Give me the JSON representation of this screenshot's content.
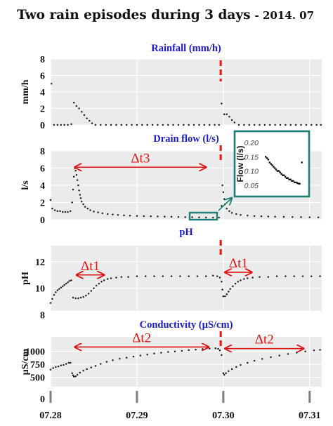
{
  "title": "Two rain episodes during 3 days",
  "title_suffix": "- 2014. 07",
  "colors": {
    "panel_bg": "#ebebeb",
    "grid": "#ffffff",
    "points": "#222222",
    "panel_title": "#1a1acc",
    "annotation": "#e01010",
    "event_line": "#ee1111",
    "inset": "#1a7f74",
    "x_ticks": "#808080"
  },
  "x_axis": {
    "range": [
      0.0,
      3.14
    ],
    "ticks": [
      {
        "label": "07.28",
        "value": 0.0
      },
      {
        "label": "07.29",
        "value": 1.0
      },
      {
        "label": "07.30",
        "value": 2.0
      },
      {
        "label": "07.31",
        "value": 3.0
      }
    ]
  },
  "event_x": 1.97,
  "chart_data": [
    {
      "type": "scatter",
      "title": "Rainfall (mm/h)",
      "ylabel": "mm/h",
      "ylim": [
        0,
        8
      ],
      "yticks": [
        0,
        2,
        4,
        6,
        8
      ],
      "grid": true,
      "points": [
        [
          0.01,
          5.0
        ],
        [
          0.04,
          0.0
        ],
        [
          0.08,
          0.0
        ],
        [
          0.12,
          0.0
        ],
        [
          0.16,
          0.0
        ],
        [
          0.2,
          0.0
        ],
        [
          0.24,
          0.1
        ],
        [
          0.27,
          2.7
        ],
        [
          0.3,
          2.3
        ],
        [
          0.33,
          2.0
        ],
        [
          0.36,
          1.6
        ],
        [
          0.39,
          1.2
        ],
        [
          0.42,
          0.8
        ],
        [
          0.45,
          0.5
        ],
        [
          0.48,
          0.2
        ],
        [
          0.52,
          0.0
        ],
        [
          0.58,
          0.0
        ],
        [
          0.64,
          0.0
        ],
        [
          0.7,
          0.0
        ],
        [
          0.76,
          0.0
        ],
        [
          0.82,
          0.0
        ],
        [
          0.88,
          0.0
        ],
        [
          0.94,
          0.0
        ],
        [
          1.0,
          0.0
        ],
        [
          1.06,
          0.0
        ],
        [
          1.12,
          0.0
        ],
        [
          1.18,
          0.0
        ],
        [
          1.24,
          0.0
        ],
        [
          1.3,
          0.0
        ],
        [
          1.36,
          0.0
        ],
        [
          1.42,
          0.0
        ],
        [
          1.48,
          0.0
        ],
        [
          1.54,
          0.0
        ],
        [
          1.6,
          0.0
        ],
        [
          1.66,
          0.0
        ],
        [
          1.72,
          0.0
        ],
        [
          1.78,
          0.0
        ],
        [
          1.84,
          0.0
        ],
        [
          1.9,
          0.0
        ],
        [
          1.95,
          0.0
        ],
        [
          1.98,
          2.6
        ],
        [
          2.01,
          1.3
        ],
        [
          2.04,
          1.3
        ],
        [
          2.07,
          1.0
        ],
        [
          2.1,
          0.6
        ],
        [
          2.13,
          0.3
        ],
        [
          2.18,
          0.0
        ],
        [
          2.24,
          0.0
        ],
        [
          2.3,
          0.0
        ],
        [
          2.36,
          0.0
        ],
        [
          2.42,
          0.0
        ],
        [
          2.48,
          0.0
        ],
        [
          2.54,
          0.0
        ],
        [
          2.6,
          0.0
        ],
        [
          2.66,
          0.0
        ],
        [
          2.72,
          0.0
        ],
        [
          2.78,
          0.0
        ],
        [
          2.84,
          0.0
        ],
        [
          2.9,
          0.0
        ],
        [
          2.96,
          0.0
        ],
        [
          3.02,
          0.0
        ],
        [
          3.08,
          0.0
        ],
        [
          3.13,
          0.0
        ]
      ]
    },
    {
      "type": "scatter",
      "title": "Drain flow (l/s)",
      "ylabel": "l/s",
      "ylim": [
        0,
        8
      ],
      "yticks": [
        0,
        2,
        4,
        6,
        8
      ],
      "grid": true,
      "points": [
        [
          0.0,
          2.3
        ],
        [
          0.02,
          1.3
        ],
        [
          0.05,
          1.1
        ],
        [
          0.08,
          1.0
        ],
        [
          0.11,
          1.0
        ],
        [
          0.14,
          0.9
        ],
        [
          0.17,
          0.9
        ],
        [
          0.2,
          0.9
        ],
        [
          0.23,
          1.0
        ],
        [
          0.25,
          2.0
        ],
        [
          0.26,
          3.5
        ],
        [
          0.27,
          5.0
        ],
        [
          0.28,
          6.0
        ],
        [
          0.29,
          5.7
        ],
        [
          0.3,
          5.2
        ],
        [
          0.31,
          4.6
        ],
        [
          0.32,
          4.0
        ],
        [
          0.33,
          3.4
        ],
        [
          0.34,
          2.9
        ],
        [
          0.35,
          2.5
        ],
        [
          0.36,
          2.1
        ],
        [
          0.38,
          1.8
        ],
        [
          0.4,
          1.5
        ],
        [
          0.43,
          1.3
        ],
        [
          0.46,
          1.1
        ],
        [
          0.5,
          0.95
        ],
        [
          0.55,
          0.85
        ],
        [
          0.6,
          0.75
        ],
        [
          0.66,
          0.65
        ],
        [
          0.72,
          0.6
        ],
        [
          0.78,
          0.55
        ],
        [
          0.85,
          0.5
        ],
        [
          0.92,
          0.47
        ],
        [
          1.0,
          0.44
        ],
        [
          1.08,
          0.42
        ],
        [
          1.16,
          0.4
        ],
        [
          1.24,
          0.38
        ],
        [
          1.32,
          0.36
        ],
        [
          1.4,
          0.34
        ],
        [
          1.48,
          0.32
        ],
        [
          1.56,
          0.3
        ],
        [
          1.64,
          0.29
        ],
        [
          1.72,
          0.27
        ],
        [
          1.8,
          0.26
        ],
        [
          1.88,
          0.25
        ],
        [
          1.95,
          0.25
        ],
        [
          1.98,
          1.6
        ],
        [
          1.99,
          4.0
        ],
        [
          2.0,
          3.2
        ],
        [
          2.01,
          2.4
        ],
        [
          2.02,
          1.8
        ],
        [
          2.04,
          1.3
        ],
        [
          2.07,
          1.0
        ],
        [
          2.1,
          0.8
        ],
        [
          2.15,
          0.65
        ],
        [
          2.2,
          0.55
        ],
        [
          2.28,
          0.48
        ],
        [
          2.36,
          0.43
        ],
        [
          2.44,
          0.4
        ],
        [
          2.52,
          0.37
        ],
        [
          2.6,
          0.35
        ],
        [
          2.7,
          0.33
        ],
        [
          2.8,
          0.31
        ],
        [
          2.9,
          0.3
        ],
        [
          3.0,
          0.28
        ],
        [
          3.1,
          0.27
        ]
      ],
      "inset": {
        "ylabel": "Flow (l/s)",
        "ylim": [
          0.03,
          0.22
        ],
        "yticks": [
          0.05,
          0.1,
          0.15,
          0.2
        ],
        "points": [
          [
            0.1,
            0.15
          ],
          [
            0.13,
            0.145
          ],
          [
            0.16,
            0.14
          ],
          [
            0.19,
            0.13
          ],
          [
            0.22,
            0.125
          ],
          [
            0.25,
            0.12
          ],
          [
            0.28,
            0.115
          ],
          [
            0.31,
            0.11
          ],
          [
            0.34,
            0.105
          ],
          [
            0.37,
            0.1
          ],
          [
            0.4,
            0.1
          ],
          [
            0.43,
            0.095
          ],
          [
            0.46,
            0.09
          ],
          [
            0.49,
            0.085
          ],
          [
            0.52,
            0.085
          ],
          [
            0.55,
            0.08
          ],
          [
            0.58,
            0.075
          ],
          [
            0.61,
            0.075
          ],
          [
            0.64,
            0.07
          ],
          [
            0.67,
            0.07
          ],
          [
            0.7,
            0.065
          ],
          [
            0.73,
            0.065
          ],
          [
            0.76,
            0.06
          ],
          [
            0.79,
            0.06
          ],
          [
            0.82,
            0.058
          ],
          [
            0.85,
            0.056
          ],
          [
            0.88,
            0.055
          ],
          [
            0.93,
            0.13
          ]
        ]
      },
      "annotations": [
        {
          "label": "Δt3",
          "from": 0.28,
          "to": 1.8,
          "y": 6.1
        }
      ]
    },
    {
      "type": "scatter",
      "title": "pH",
      "ylabel": "pH",
      "ylim": [
        8.3,
        13.2
      ],
      "yticks": [
        8,
        10,
        12
      ],
      "grid": true,
      "points": [
        [
          0.0,
          8.9
        ],
        [
          0.02,
          9.2
        ],
        [
          0.04,
          9.5
        ],
        [
          0.06,
          9.7
        ],
        [
          0.08,
          9.85
        ],
        [
          0.1,
          9.95
        ],
        [
          0.12,
          10.05
        ],
        [
          0.14,
          10.15
        ],
        [
          0.16,
          10.25
        ],
        [
          0.18,
          10.35
        ],
        [
          0.2,
          10.45
        ],
        [
          0.22,
          10.55
        ],
        [
          0.24,
          10.6
        ],
        [
          0.26,
          9.3
        ],
        [
          0.29,
          9.25
        ],
        [
          0.32,
          9.25
        ],
        [
          0.35,
          9.3
        ],
        [
          0.38,
          9.35
        ],
        [
          0.41,
          9.45
        ],
        [
          0.44,
          9.6
        ],
        [
          0.47,
          9.8
        ],
        [
          0.5,
          10.0
        ],
        [
          0.53,
          10.2
        ],
        [
          0.56,
          10.35
        ],
        [
          0.59,
          10.5
        ],
        [
          0.62,
          10.6
        ],
        [
          0.66,
          10.7
        ],
        [
          0.7,
          10.75
        ],
        [
          0.76,
          10.8
        ],
        [
          0.82,
          10.85
        ],
        [
          0.9,
          10.85
        ],
        [
          1.0,
          10.9
        ],
        [
          1.1,
          10.9
        ],
        [
          1.2,
          10.9
        ],
        [
          1.3,
          10.9
        ],
        [
          1.4,
          10.9
        ],
        [
          1.5,
          10.9
        ],
        [
          1.6,
          10.9
        ],
        [
          1.7,
          10.9
        ],
        [
          1.8,
          10.9
        ],
        [
          1.88,
          10.95
        ],
        [
          1.93,
          10.9
        ],
        [
          1.96,
          10.8
        ],
        [
          1.98,
          10.5
        ],
        [
          1.99,
          9.9
        ],
        [
          2.0,
          9.4
        ],
        [
          2.02,
          9.4
        ],
        [
          2.04,
          9.55
        ],
        [
          2.06,
          9.75
        ],
        [
          2.08,
          9.95
        ],
        [
          2.11,
          10.15
        ],
        [
          2.14,
          10.35
        ],
        [
          2.17,
          10.5
        ],
        [
          2.2,
          10.6
        ],
        [
          2.24,
          10.7
        ],
        [
          2.28,
          10.75
        ],
        [
          2.34,
          10.8
        ],
        [
          2.42,
          10.85
        ],
        [
          2.52,
          10.85
        ],
        [
          2.62,
          10.9
        ],
        [
          2.72,
          10.9
        ],
        [
          2.82,
          10.9
        ],
        [
          2.92,
          10.9
        ],
        [
          3.02,
          10.9
        ],
        [
          3.12,
          10.9
        ]
      ],
      "annotations": [
        {
          "label": "Δt1",
          "from": 0.3,
          "to": 0.62,
          "y": 11.0
        },
        {
          "label": "Δt1",
          "from": 2.02,
          "to": 2.33,
          "y": 11.2
        }
      ]
    },
    {
      "type": "scatter",
      "title": "Conductivity (µS/cm)",
      "ylabel": "µS/cm",
      "ylim": [
        320,
        1280
      ],
      "yticks": [
        500,
        750,
        1000
      ],
      "grid": true,
      "points": [
        [
          0.0,
          650
        ],
        [
          0.03,
          680
        ],
        [
          0.06,
          700
        ],
        [
          0.09,
          710
        ],
        [
          0.12,
          730
        ],
        [
          0.15,
          740
        ],
        [
          0.18,
          760
        ],
        [
          0.21,
          780
        ],
        [
          0.23,
          780
        ],
        [
          0.25,
          580
        ],
        [
          0.26,
          540
        ],
        [
          0.27,
          515
        ],
        [
          0.29,
          520
        ],
        [
          0.31,
          550
        ],
        [
          0.34,
          590
        ],
        [
          0.38,
          630
        ],
        [
          0.42,
          660
        ],
        [
          0.47,
          690
        ],
        [
          0.52,
          720
        ],
        [
          0.58,
          760
        ],
        [
          0.65,
          800
        ],
        [
          0.72,
          830
        ],
        [
          0.8,
          860
        ],
        [
          0.88,
          880
        ],
        [
          0.96,
          900
        ],
        [
          1.04,
          920
        ],
        [
          1.12,
          940
        ],
        [
          1.2,
          960
        ],
        [
          1.28,
          975
        ],
        [
          1.36,
          990
        ],
        [
          1.44,
          1000
        ],
        [
          1.52,
          1010
        ],
        [
          1.6,
          1025
        ],
        [
          1.68,
          1035
        ],
        [
          1.76,
          1045
        ],
        [
          1.84,
          1055
        ],
        [
          1.91,
          1060
        ],
        [
          1.94,
          1050
        ],
        [
          1.96,
          1020
        ],
        [
          1.98,
          930
        ],
        [
          2.0,
          580
        ],
        [
          2.01,
          550
        ],
        [
          2.03,
          580
        ],
        [
          2.06,
          620
        ],
        [
          2.1,
          660
        ],
        [
          2.15,
          700
        ],
        [
          2.2,
          740
        ],
        [
          2.28,
          780
        ],
        [
          2.36,
          820
        ],
        [
          2.45,
          855
        ],
        [
          2.55,
          890
        ],
        [
          2.65,
          920
        ],
        [
          2.75,
          950
        ],
        [
          2.85,
          975
        ],
        [
          2.95,
          1000
        ],
        [
          3.05,
          1020
        ],
        [
          3.12,
          1030
        ]
      ],
      "annotations": [
        {
          "label": "Δt2",
          "from": 0.28,
          "to": 1.83,
          "y": 1085
        },
        {
          "label": "Δt2",
          "from": 2.02,
          "to": 2.93,
          "y": 1055
        }
      ]
    }
  ]
}
